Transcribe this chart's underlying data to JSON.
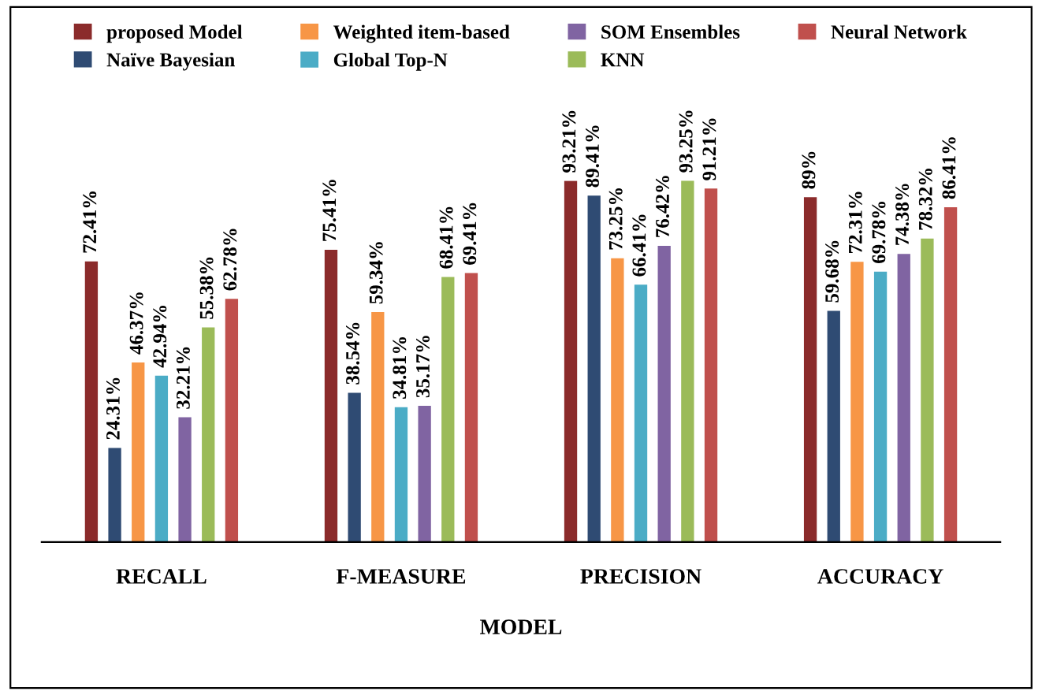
{
  "chart_data": {
    "type": "bar",
    "xlabel": "MODEL",
    "categories": [
      "RECALL",
      "F-MEASURE",
      "PRECISION",
      "ACCURACY"
    ],
    "series": [
      {
        "name": "proposed Model",
        "color": "#8b2b2b",
        "values": [
          72.41,
          75.41,
          93.21,
          89
        ],
        "value_labels": [
          "72.41%",
          "75.41%",
          "93.21%",
          "89%"
        ]
      },
      {
        "name": "Naïve Bayesian",
        "color": "#2f4b73",
        "values": [
          24.31,
          38.54,
          89.41,
          59.68
        ],
        "value_labels": [
          "24.31%",
          "38.54%",
          "89.41%",
          "59.68%"
        ]
      },
      {
        "name": "Weighted item-based",
        "color": "#f79646",
        "values": [
          46.37,
          59.34,
          73.25,
          72.31
        ],
        "value_labels": [
          "46.37%",
          "59.34%",
          "73.25%",
          "72.31%"
        ]
      },
      {
        "name": "Global Top-N",
        "color": "#4bacc6",
        "values": [
          42.94,
          34.81,
          66.41,
          69.78
        ],
        "value_labels": [
          "42.94%",
          "34.81%",
          "66.41%",
          "69.78%"
        ]
      },
      {
        "name": "SOM Ensembles",
        "color": "#8064a2",
        "values": [
          32.21,
          35.17,
          76.42,
          74.38
        ],
        "value_labels": [
          "32.21%",
          "35.17%",
          "76.42%",
          "74.38%"
        ]
      },
      {
        "name": "KNN",
        "color": "#9bbb59",
        "values": [
          55.38,
          68.41,
          93.25,
          78.32
        ],
        "value_labels": [
          "55.38%",
          "68.41%",
          "93.25%",
          "78.32%"
        ]
      },
      {
        "name": "Neural Network",
        "color": "#c0504d",
        "values": [
          62.78,
          69.41,
          91.21,
          86.41
        ],
        "value_labels": [
          "62.78%",
          "69.41%",
          "91.21%",
          "86.41%"
        ]
      }
    ],
    "legend": "top",
    "grid": false
  }
}
